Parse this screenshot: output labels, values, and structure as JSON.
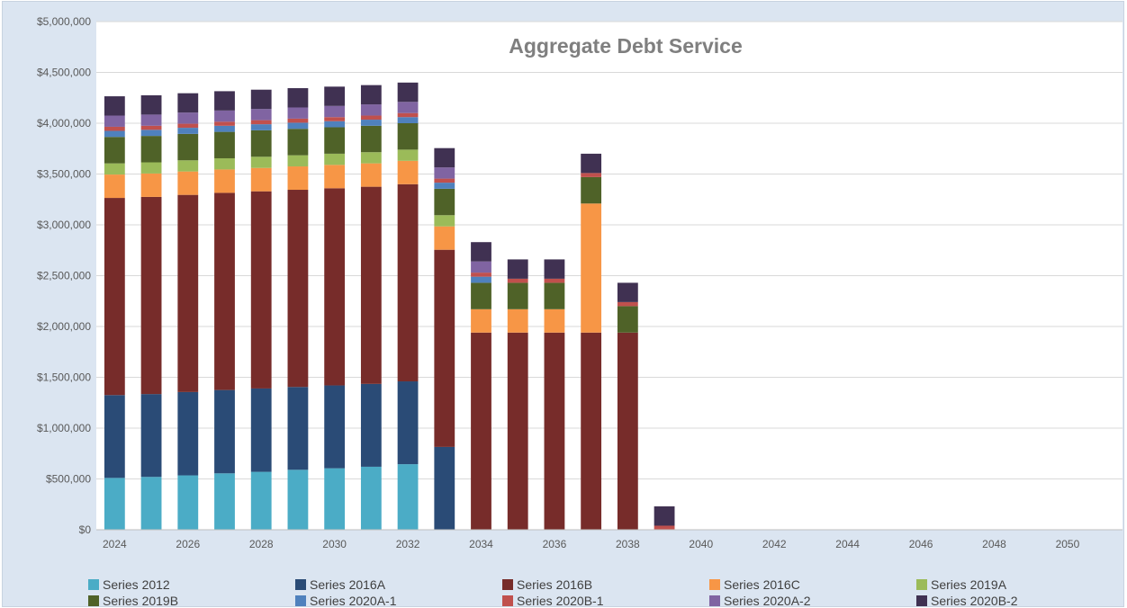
{
  "chart_data": {
    "type": "bar",
    "stacked": true,
    "title": "Aggregate Debt Service",
    "xlabel": "",
    "ylabel": "",
    "ylim": [
      0,
      5000000
    ],
    "y_ticks": [
      0,
      500000,
      1000000,
      1500000,
      2000000,
      2500000,
      3000000,
      3500000,
      4000000,
      4500000,
      5000000
    ],
    "y_tick_labels": [
      "$0",
      "$500,000",
      "$1,000,000",
      "$1,500,000",
      "$2,000,000",
      "$2,500,000",
      "$3,000,000",
      "$3,500,000",
      "$4,000,000",
      "$4,500,000",
      "$5,000,000"
    ],
    "categories": [
      "2024",
      "2025",
      "2026",
      "2027",
      "2028",
      "2029",
      "2030",
      "2031",
      "2032",
      "2033",
      "2034",
      "2035",
      "2036",
      "2037",
      "2038",
      "2039",
      "2040",
      "2041",
      "2042",
      "2043",
      "2044",
      "2045",
      "2046",
      "2047",
      "2048",
      "2049",
      "2050",
      "2051"
    ],
    "x_tick_labels": [
      "2024",
      "",
      "2026",
      "",
      "2028",
      "",
      "2030",
      "",
      "2032",
      "",
      "2034",
      "",
      "2036",
      "",
      "2038",
      "",
      "2040",
      "",
      "2042",
      "",
      "2044",
      "",
      "2046",
      "",
      "2048",
      "",
      "2050",
      ""
    ],
    "grid": true,
    "legend_position": "bottom",
    "series": [
      {
        "name": "Series 2012",
        "color": "#4bacc6",
        "values": [
          510000,
          520000,
          535000,
          555000,
          570000,
          590000,
          605000,
          620000,
          645000,
          0,
          0,
          0,
          0,
          0,
          0,
          0,
          0,
          0,
          0,
          0,
          0,
          0,
          0,
          0,
          0,
          0,
          0,
          0
        ]
      },
      {
        "name": "Series 2016A",
        "color": "#2a4b76",
        "values": [
          815000,
          815000,
          820000,
          820000,
          820000,
          815000,
          815000,
          815000,
          815000,
          815000,
          0,
          0,
          0,
          0,
          0,
          0,
          0,
          0,
          0,
          0,
          0,
          0,
          0,
          0,
          0,
          0,
          0,
          0
        ]
      },
      {
        "name": "Series 2016B",
        "color": "#772c2a",
        "values": [
          1940000,
          1940000,
          1940000,
          1940000,
          1940000,
          1940000,
          1940000,
          1940000,
          1940000,
          1940000,
          1940000,
          1940000,
          1940000,
          1940000,
          1940000,
          0,
          0,
          0,
          0,
          0,
          0,
          0,
          0,
          0,
          0,
          0,
          0,
          0
        ]
      },
      {
        "name": "Series 2016C",
        "color": "#f79646",
        "values": [
          230000,
          230000,
          230000,
          230000,
          230000,
          230000,
          230000,
          230000,
          230000,
          230000,
          230000,
          230000,
          230000,
          1270000,
          0,
          0,
          0,
          0,
          0,
          0,
          0,
          0,
          0,
          0,
          0,
          0,
          0,
          0
        ]
      },
      {
        "name": "Series 2019A",
        "color": "#9bbb59",
        "values": [
          110000,
          110000,
          110000,
          110000,
          110000,
          110000,
          110000,
          110000,
          110000,
          110000,
          0,
          0,
          0,
          0,
          0,
          0,
          0,
          0,
          0,
          0,
          0,
          0,
          0,
          0,
          0,
          0,
          0,
          0
        ]
      },
      {
        "name": "Series 2019B",
        "color": "#4f6228",
        "values": [
          260000,
          260000,
          260000,
          260000,
          260000,
          260000,
          260000,
          260000,
          260000,
          260000,
          260000,
          260000,
          260000,
          260000,
          260000,
          0,
          0,
          0,
          0,
          0,
          0,
          0,
          0,
          0,
          0,
          0,
          0,
          0
        ]
      },
      {
        "name": "Series 2020A-1",
        "color": "#4f81bd",
        "values": [
          60000,
          60000,
          60000,
          60000,
          60000,
          60000,
          60000,
          60000,
          60000,
          60000,
          60000,
          0,
          0,
          0,
          0,
          0,
          0,
          0,
          0,
          0,
          0,
          0,
          0,
          0,
          0,
          0,
          0,
          0
        ]
      },
      {
        "name": "Series 2020B-1",
        "color": "#c0504d",
        "values": [
          40000,
          40000,
          40000,
          40000,
          40000,
          40000,
          40000,
          40000,
          40000,
          40000,
          40000,
          40000,
          40000,
          40000,
          40000,
          40000,
          0,
          0,
          0,
          0,
          0,
          0,
          0,
          0,
          0,
          0,
          0,
          0
        ]
      },
      {
        "name": "Series 2020A-2",
        "color": "#8064a2",
        "values": [
          110000,
          110000,
          110000,
          110000,
          110000,
          110000,
          110000,
          110000,
          110000,
          110000,
          110000,
          0,
          0,
          0,
          0,
          0,
          0,
          0,
          0,
          0,
          0,
          0,
          0,
          0,
          0,
          0,
          0,
          0
        ]
      },
      {
        "name": "Series 2020B-2",
        "color": "#403152",
        "values": [
          190000,
          190000,
          190000,
          190000,
          190000,
          190000,
          190000,
          190000,
          190000,
          190000,
          190000,
          190000,
          190000,
          190000,
          190000,
          190000,
          0,
          0,
          0,
          0,
          0,
          0,
          0,
          0,
          0,
          0,
          0,
          0
        ]
      }
    ]
  }
}
